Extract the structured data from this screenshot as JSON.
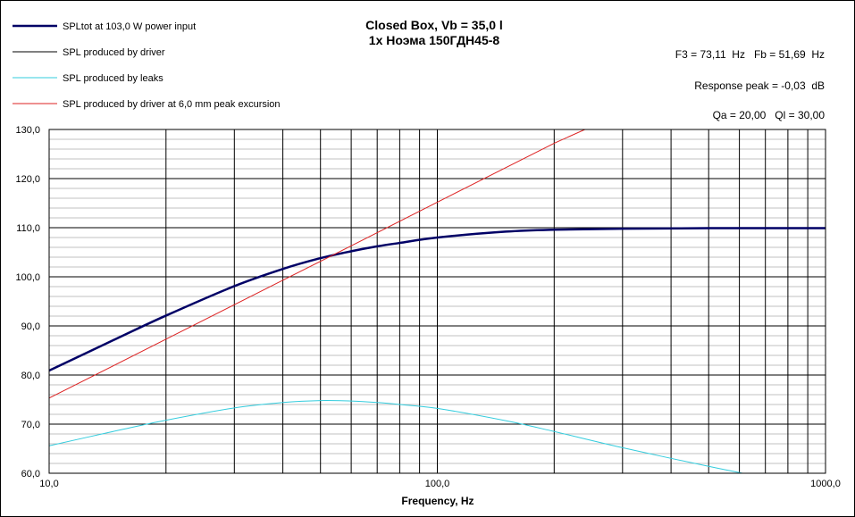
{
  "chart_data": {
    "type": "line",
    "title": "Closed Box, Vb = 35,0 l",
    "subtitle": "1x Ноэма 150ГДН45-8",
    "xlabel": "Frequency, Hz",
    "ylabel": "",
    "x_scale": "log",
    "xlim": [
      10,
      1000
    ],
    "ylim": [
      60,
      130
    ],
    "x_ticks": [
      10,
      100,
      1000
    ],
    "x_tick_labels": [
      "10,0",
      "100,0",
      "1000,0"
    ],
    "y_ticks": [
      60,
      70,
      80,
      90,
      100,
      110,
      120,
      130
    ],
    "y_tick_labels": [
      "60,0",
      "70,0",
      "80,0",
      "90,0",
      "100,0",
      "110,0",
      "120,0",
      "130,0"
    ],
    "grid": true,
    "legend_position": "top-left",
    "annotations": [
      "F3 = 73,11  Hz   Fb = 51,69  Hz",
      "Response peak = -0,03  dB",
      "Qa = 20,00   Ql = 30,00"
    ],
    "series": [
      {
        "name": "SPLtot at 103,0 W power input",
        "color": "#000066",
        "x": [
          10,
          15,
          20,
          30,
          40,
          50,
          60,
          70,
          80,
          100,
          150,
          200,
          300,
          500,
          1000
        ],
        "y": [
          80.9,
          87.5,
          92.1,
          98.1,
          101.6,
          103.8,
          105.2,
          106.2,
          106.9,
          108.0,
          109.2,
          109.6,
          109.8,
          109.9,
          109.9
        ]
      },
      {
        "name": "SPL produced by driver",
        "color": "#000000",
        "x": [
          10,
          15,
          20,
          30,
          40,
          50,
          60,
          70,
          80,
          100,
          150,
          200,
          300,
          500,
          1000
        ],
        "y": [
          80.9,
          87.5,
          92.1,
          98.1,
          101.6,
          103.8,
          105.2,
          106.2,
          106.9,
          108.0,
          109.2,
          109.6,
          109.8,
          109.9,
          109.9
        ]
      },
      {
        "name": "SPL produced by leaks",
        "color": "#33CCDD",
        "x": [
          10,
          15,
          20,
          30,
          40,
          50,
          60,
          70,
          80,
          100,
          150,
          200,
          300,
          500,
          630
        ],
        "y": [
          65.6,
          68.7,
          70.8,
          73.3,
          74.4,
          74.8,
          74.7,
          74.4,
          74.0,
          73.2,
          70.7,
          68.5,
          65.2,
          61.4,
          59.8
        ]
      },
      {
        "name": "SPL produced by driver at 6,0 mm peak excursion",
        "color": "#DD2222",
        "x": [
          10,
          20,
          40,
          60,
          100,
          200,
          240
        ],
        "y": [
          75.3,
          87.3,
          99.3,
          106.3,
          115.2,
          127.2,
          130.0
        ]
      }
    ]
  }
}
